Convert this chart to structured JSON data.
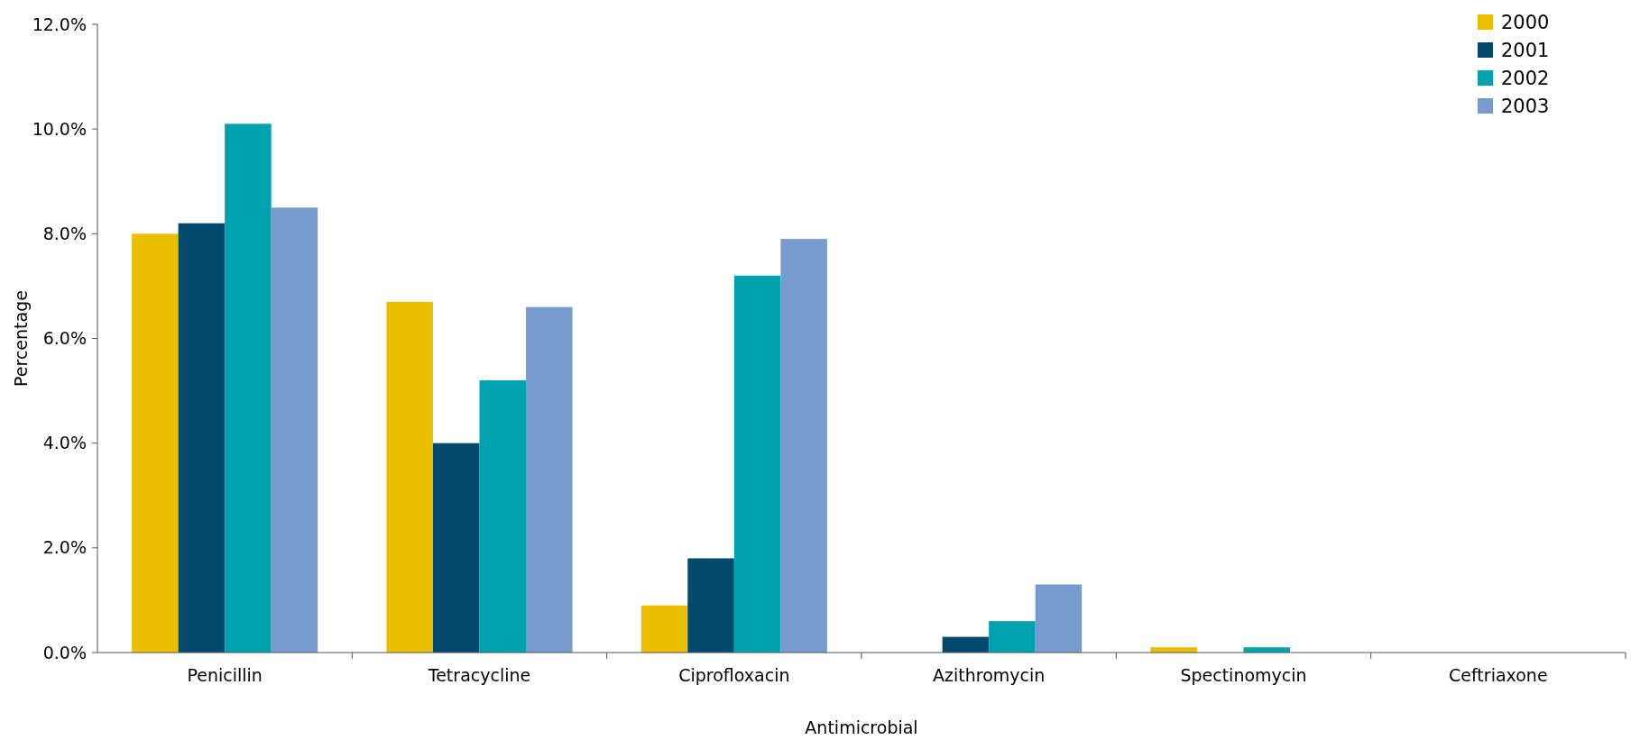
{
  "chart_data": {
    "type": "bar",
    "xlabel": "Antimicrobial",
    "ylabel": "Percentage",
    "categories": [
      "Penicillin",
      "Tetracycline",
      "Ciprofloxacin",
      "Azithromycin",
      "Spectinomycin",
      "Ceftriaxone"
    ],
    "series": [
      {
        "name": "2000",
        "color": "#ebbe00",
        "values": [
          8.0,
          6.7,
          0.9,
          0,
          0.1,
          0
        ]
      },
      {
        "name": "2001",
        "color": "#004a6e",
        "values": [
          8.2,
          4.0,
          1.8,
          0.3,
          0,
          0
        ]
      },
      {
        "name": "2002",
        "color": "#00a2b0",
        "values": [
          10.1,
          5.2,
          7.2,
          0.6,
          0.1,
          0
        ]
      },
      {
        "name": "2003",
        "color": "#779bcd",
        "values": [
          8.5,
          6.6,
          7.9,
          1.3,
          0,
          0
        ]
      }
    ],
    "ylim": [
      0,
      12
    ],
    "yticks": [
      {
        "value": 0,
        "label": "0.0%"
      },
      {
        "value": 2,
        "label": "2.0%"
      },
      {
        "value": 4,
        "label": "4.0%"
      },
      {
        "value": 6,
        "label": "6.0%"
      },
      {
        "value": 8,
        "label": "8.0%"
      },
      {
        "value": 10,
        "label": "10.0%"
      },
      {
        "value": 12,
        "label": "12.0%"
      }
    ],
    "grid": false,
    "legend": "top right"
  }
}
